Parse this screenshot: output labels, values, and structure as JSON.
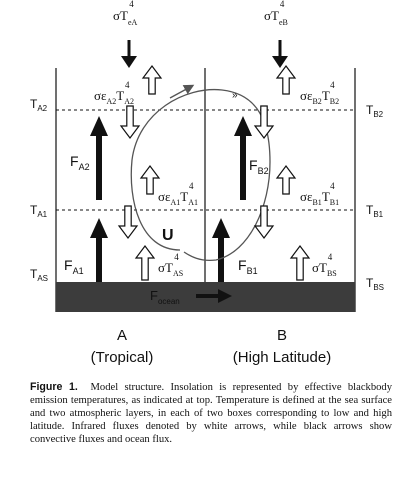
{
  "top": {
    "left_symbol": "σT",
    "left_sub": "eA",
    "left_sup": "4",
    "right_symbol": "σT",
    "right_sub": "eB",
    "right_sup": "4"
  },
  "levels": {
    "left": [
      {
        "main": "T",
        "sub": "A2"
      },
      {
        "main": "T",
        "sub": "A1"
      },
      {
        "main": "T",
        "sub": "AS"
      }
    ],
    "right": [
      {
        "main": "T",
        "sub": "B2"
      },
      {
        "main": "T",
        "sub": "B1"
      },
      {
        "main": "T",
        "sub": "BS"
      }
    ]
  },
  "fluxes": {
    "fa2": {
      "main": "F",
      "sub": "A2"
    },
    "fb2": {
      "main": "F",
      "sub": "B2"
    },
    "fa1": {
      "main": "F",
      "sub": "A1"
    },
    "fb1": {
      "main": "F",
      "sub": "B1"
    },
    "ocean": {
      "main": "F",
      "sub": "ocean"
    },
    "u": "U"
  },
  "emissions": {
    "a2": {
      "pre": "σε",
      "sub1": "A2",
      "mid": "T",
      "sub2": "A2",
      "sup": "4"
    },
    "b2": {
      "pre": "σε",
      "sub1": "B2",
      "mid": "T",
      "sub2": "B2",
      "sup": "4"
    },
    "a1": {
      "pre": "σε",
      "sub1": "A1",
      "mid": "T",
      "sub2": "A1",
      "sup": "4"
    },
    "b1": {
      "pre": "σε",
      "sub1": "B1",
      "mid": "T",
      "sub2": "B1",
      "sup": "4"
    },
    "as": {
      "pre": "σT",
      "sub": "AS",
      "sup": "4"
    },
    "bs": {
      "pre": "σT",
      "sub": "BS",
      "sup": "4"
    }
  },
  "boxes": {
    "a_letter": "A",
    "a_name": "(Tropical)",
    "b_letter": "B",
    "b_name": "(High Latitude)"
  },
  "caption": {
    "label": "Figure 1.",
    "text": "Model structure. Insolation is represented by effective blackbody emission temperatures, as indicated at top. Temperature is defined at the sea surface and two atmospheric layers, in each of two boxes corresponding to low and high latitude. Infrared fluxes denoted by white arrows, while black arrows show convective fluxes and ocean flux."
  },
  "colors": {
    "ocean": "#3c3c3c",
    "ink": "#111111",
    "open_arrow_fill": "#ffffff"
  }
}
